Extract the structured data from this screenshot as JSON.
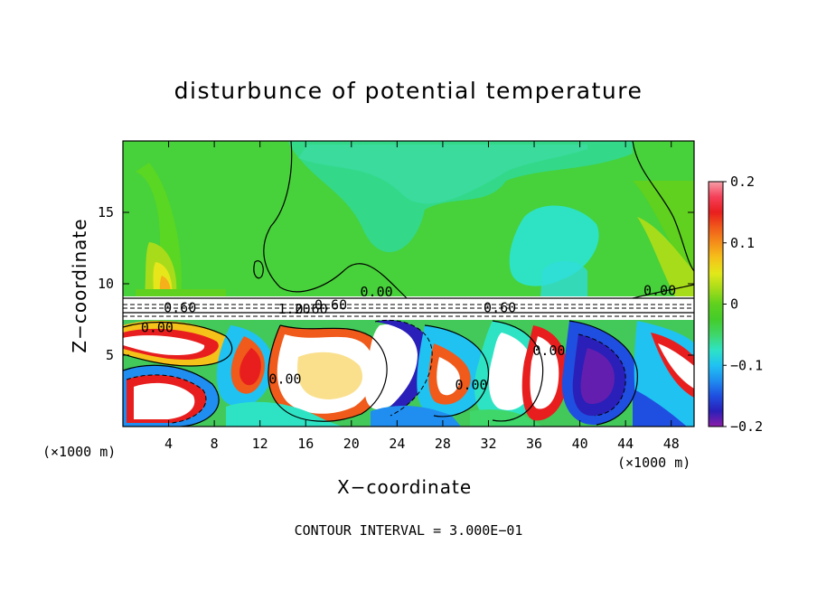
{
  "chart_data": {
    "type": "heatmap",
    "title": "disturbunce of potential temperature",
    "xlabel": "X−coordinate",
    "ylabel": "Z−coordinate",
    "x_unit_left": "(×1000 m)",
    "x_unit_right": "(×1000 m)",
    "footer": "CONTOUR INTERVAL = 3.000E−01",
    "xlim": [
      0,
      50
    ],
    "ylim": [
      0,
      20
    ],
    "x_ticks": [
      4,
      8,
      12,
      16,
      20,
      24,
      28,
      32,
      36,
      40,
      44,
      48
    ],
    "y_ticks": [
      5,
      10,
      15
    ],
    "colorbar": {
      "range": [
        -0.2,
        0.2
      ],
      "tick_values": [
        0.2,
        0.1,
        0,
        -0.1,
        -0.2
      ],
      "tick_labels": [
        "0.2",
        "0.1",
        "0",
        "−0.1",
        "−0.2"
      ],
      "colors": [
        "#8b1ea8",
        "#2a1fb8",
        "#1f4fe0",
        "#1f8ef0",
        "#20c2f2",
        "#2ee3c4",
        "#3fd66a",
        "#44cc2a",
        "#5fd11e",
        "#a6dc1a",
        "#e2e81a",
        "#f5c21a",
        "#f58f1a",
        "#f05a1a",
        "#e81e1e",
        "#f5405a",
        "#f59fa8"
      ]
    },
    "field_summary": {
      "upper_layer": {
        "z_range": [
          9,
          20
        ],
        "value_approx": 0.0,
        "note": "mostly green, weak positive (yellow) near x 3-5, weak negative (cyan) near x 28-40"
      },
      "lower_layer": {
        "z_range": [
          0,
          9
        ],
        "value_range": [
          -0.2,
          0.2
        ],
        "note": "turbulent mixed eddies, strong positive (red/white) and negative (blue/purple) blobs"
      }
    },
    "contour_labels": [
      {
        "x": 5.0,
        "z": 8.0,
        "text": "0.60"
      },
      {
        "x": 15.0,
        "z": 7.9,
        "text": "1.20"
      },
      {
        "x": 16.5,
        "z": 7.9,
        "text": "0.60"
      },
      {
        "x": 18.2,
        "z": 8.2,
        "text": "0.60"
      },
      {
        "x": 3.0,
        "z": 6.6,
        "text": "0.00"
      },
      {
        "x": 14.2,
        "z": 3.0,
        "text": "0.00"
      },
      {
        "x": 22.2,
        "z": 9.1,
        "text": "0.00"
      },
      {
        "x": 30.5,
        "z": 2.6,
        "text": "0.00"
      },
      {
        "x": 33.0,
        "z": 8.0,
        "text": "0.60"
      },
      {
        "x": 37.3,
        "z": 5.0,
        "text": "0.00"
      },
      {
        "x": 47.0,
        "z": 9.2,
        "text": "0.00"
      }
    ]
  }
}
